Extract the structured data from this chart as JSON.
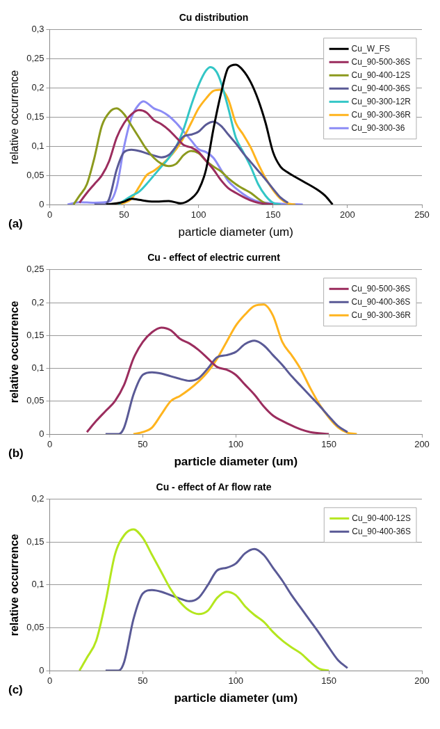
{
  "chart_data": [
    {
      "type": "line",
      "title": "Cu distribution",
      "xlabel": "particle diameter (um)",
      "ylabel": "relative occurrence",
      "annotations": [
        "(a)"
      ],
      "xlim": [
        0,
        250
      ],
      "xticks": [
        0,
        50,
        100,
        150,
        200,
        250
      ],
      "ylim": [
        0,
        0.3
      ],
      "yticks": [
        {
          "value": 0,
          "label": "0"
        },
        {
          "value": 0.05,
          "label": "0,05"
        },
        {
          "value": 0.1,
          "label": "0,1"
        },
        {
          "value": 0.15,
          "label": "0,15"
        },
        {
          "value": 0.2,
          "label": "0,2"
        },
        {
          "value": 0.25,
          "label": "0,25"
        },
        {
          "value": 0.3,
          "label": "0,3"
        }
      ],
      "grid": "y",
      "legend": "top right",
      "marker": "none",
      "line_style": "solid",
      "series": [
        {
          "name": "Cu_W_FS",
          "color": "#000000",
          "x": [
            38,
            45,
            50,
            55,
            60,
            70,
            80,
            88,
            95,
            100,
            105,
            110,
            115,
            120,
            125,
            130,
            135,
            140,
            145,
            150,
            155,
            160,
            170,
            180,
            185,
            190
          ],
          "values": [
            0,
            0.002,
            0.005,
            0.01,
            0.008,
            0.005,
            0.006,
            0.002,
            0.01,
            0.025,
            0.06,
            0.13,
            0.19,
            0.235,
            0.24,
            0.23,
            0.21,
            0.18,
            0.14,
            0.09,
            0.065,
            0.055,
            0.04,
            0.025,
            0.015,
            0
          ]
        },
        {
          "name": "Cu_90-500-36S",
          "color": "#9b2d5e",
          "x": [
            20,
            25,
            30,
            35,
            40,
            45,
            50,
            55,
            60,
            65,
            70,
            75,
            80,
            85,
            90,
            95,
            100,
            105,
            110,
            115,
            120,
            125,
            130,
            135,
            140,
            150
          ],
          "values": [
            0.003,
            0.02,
            0.035,
            0.05,
            0.075,
            0.115,
            0.14,
            0.155,
            0.162,
            0.158,
            0.145,
            0.138,
            0.128,
            0.115,
            0.102,
            0.098,
            0.09,
            0.075,
            0.06,
            0.042,
            0.028,
            0.02,
            0.013,
            0.007,
            0.003,
            0
          ]
        },
        {
          "name": "Cu_90-400-12S",
          "color": "#8c9a1e",
          "x": [
            16,
            20,
            25,
            30,
            35,
            40,
            45,
            50,
            55,
            60,
            65,
            70,
            75,
            80,
            85,
            90,
            95,
            100,
            105,
            110,
            115,
            120,
            125,
            130,
            135,
            140,
            145,
            150
          ],
          "values": [
            0,
            0.015,
            0.035,
            0.08,
            0.135,
            0.158,
            0.165,
            0.155,
            0.135,
            0.115,
            0.095,
            0.08,
            0.07,
            0.066,
            0.07,
            0.085,
            0.092,
            0.088,
            0.075,
            0.065,
            0.057,
            0.045,
            0.035,
            0.027,
            0.02,
            0.01,
            0.002,
            0
          ]
        },
        {
          "name": "Cu_90-400-36S",
          "color": "#5a5a96",
          "x": [
            30,
            37,
            40,
            45,
            50,
            55,
            60,
            65,
            70,
            75,
            80,
            85,
            90,
            95,
            100,
            105,
            110,
            115,
            120,
            125,
            130,
            135,
            140,
            145,
            150,
            155,
            160
          ],
          "values": [
            0,
            0,
            0.01,
            0.06,
            0.09,
            0.094,
            0.092,
            0.088,
            0.084,
            0.081,
            0.085,
            0.1,
            0.117,
            0.12,
            0.125,
            0.137,
            0.142,
            0.135,
            0.12,
            0.105,
            0.088,
            0.073,
            0.058,
            0.043,
            0.027,
            0.012,
            0.003
          ]
        },
        {
          "name": "Cu_90-300-12R",
          "color": "#33c6c6",
          "x": [
            46,
            50,
            55,
            60,
            65,
            70,
            75,
            80,
            85,
            90,
            95,
            100,
            105,
            108,
            112,
            115,
            120,
            125,
            130,
            135,
            140,
            145,
            150,
            155
          ],
          "values": [
            0,
            0.007,
            0.015,
            0.022,
            0.035,
            0.05,
            0.065,
            0.08,
            0.1,
            0.13,
            0.17,
            0.205,
            0.23,
            0.236,
            0.228,
            0.21,
            0.165,
            0.115,
            0.09,
            0.065,
            0.035,
            0.015,
            0.003,
            0
          ]
        },
        {
          "name": "Cu_90-300-36R",
          "color": "#ffb41e",
          "x": [
            45,
            50,
            55,
            60,
            65,
            70,
            75,
            80,
            85,
            90,
            95,
            100,
            105,
            110,
            115,
            120,
            125,
            130,
            135,
            140,
            145,
            150,
            155,
            160,
            165
          ],
          "values": [
            0,
            0.003,
            0.01,
            0.03,
            0.05,
            0.058,
            0.068,
            0.08,
            0.095,
            0.115,
            0.14,
            0.165,
            0.182,
            0.195,
            0.197,
            0.18,
            0.14,
            0.12,
            0.098,
            0.07,
            0.045,
            0.025,
            0.01,
            0.002,
            0
          ]
        },
        {
          "name": "Cu_90-300-36",
          "color": "#8c8cf5",
          "x": [
            12,
            20,
            30,
            40,
            45,
            50,
            55,
            60,
            63,
            65,
            70,
            75,
            80,
            85,
            90,
            95,
            100,
            105,
            110,
            115,
            120,
            125,
            130,
            135,
            140,
            150,
            170
          ],
          "values": [
            0,
            0.004,
            0.003,
            0.005,
            0.03,
            0.1,
            0.15,
            0.172,
            0.177,
            0.175,
            0.165,
            0.16,
            0.152,
            0.14,
            0.125,
            0.11,
            0.095,
            0.09,
            0.08,
            0.06,
            0.04,
            0.028,
            0.018,
            0.01,
            0.005,
            0.002,
            0
          ]
        }
      ]
    },
    {
      "type": "line",
      "title": "Cu - effect of electric current",
      "xlabel": "particle diameter (um)",
      "ylabel": "relative occurrence",
      "annotations": [
        "(b)"
      ],
      "xlim": [
        0,
        200
      ],
      "xticks": [
        0,
        50,
        100,
        150,
        200
      ],
      "ylim": [
        0,
        0.25
      ],
      "yticks": [
        {
          "value": 0,
          "label": "0"
        },
        {
          "value": 0.05,
          "label": "0,05"
        },
        {
          "value": 0.1,
          "label": "0,1"
        },
        {
          "value": 0.15,
          "label": "0,15"
        },
        {
          "value": 0.2,
          "label": "0,2"
        },
        {
          "value": 0.25,
          "label": "0,25"
        }
      ],
      "grid": "y",
      "legend": "top right",
      "marker": "none",
      "line_style": "solid",
      "series": [
        {
          "name": "Cu_90-500-36S",
          "color": "#9b2d5e",
          "x": [
            20,
            25,
            30,
            35,
            40,
            45,
            50,
            55,
            60,
            65,
            70,
            75,
            80,
            85,
            90,
            95,
            100,
            105,
            110,
            115,
            120,
            125,
            130,
            135,
            140,
            150
          ],
          "values": [
            0.003,
            0.02,
            0.035,
            0.05,
            0.075,
            0.115,
            0.14,
            0.155,
            0.162,
            0.158,
            0.145,
            0.138,
            0.128,
            0.115,
            0.102,
            0.098,
            0.09,
            0.075,
            0.06,
            0.042,
            0.028,
            0.02,
            0.013,
            0.007,
            0.003,
            0
          ]
        },
        {
          "name": "Cu_90-400-36S",
          "color": "#5a5a96",
          "x": [
            30,
            37,
            40,
            45,
            50,
            55,
            60,
            65,
            70,
            75,
            80,
            85,
            90,
            95,
            100,
            105,
            110,
            115,
            120,
            125,
            130,
            135,
            140,
            145,
            150,
            155,
            160
          ],
          "values": [
            0,
            0,
            0.01,
            0.06,
            0.09,
            0.094,
            0.092,
            0.088,
            0.084,
            0.081,
            0.085,
            0.1,
            0.117,
            0.12,
            0.125,
            0.137,
            0.142,
            0.135,
            0.12,
            0.105,
            0.088,
            0.073,
            0.058,
            0.043,
            0.027,
            0.012,
            0.003
          ]
        },
        {
          "name": "Cu_90-300-36R",
          "color": "#ffb41e",
          "x": [
            45,
            50,
            55,
            60,
            65,
            70,
            75,
            80,
            85,
            90,
            95,
            100,
            105,
            110,
            115,
            120,
            125,
            130,
            135,
            140,
            145,
            150,
            155,
            160,
            165
          ],
          "values": [
            0,
            0.003,
            0.01,
            0.03,
            0.05,
            0.058,
            0.068,
            0.08,
            0.095,
            0.115,
            0.14,
            0.165,
            0.182,
            0.195,
            0.197,
            0.18,
            0.14,
            0.12,
            0.098,
            0.07,
            0.045,
            0.025,
            0.01,
            0.002,
            0
          ]
        }
      ]
    },
    {
      "type": "line",
      "title": "Cu - effect of Ar flow rate",
      "xlabel": "particle diameter (um)",
      "ylabel": "relative occurrence",
      "annotations": [
        "(c)"
      ],
      "xlim": [
        0,
        200
      ],
      "xticks": [
        0,
        50,
        100,
        150,
        200
      ],
      "ylim": [
        0,
        0.2
      ],
      "yticks": [
        {
          "value": 0,
          "label": "0"
        },
        {
          "value": 0.05,
          "label": "0,05"
        },
        {
          "value": 0.1,
          "label": "0,1"
        },
        {
          "value": 0.15,
          "label": "0,15"
        },
        {
          "value": 0.2,
          "label": "0,2"
        }
      ],
      "grid": "y",
      "legend": "top right",
      "marker": "none",
      "line_style": "solid",
      "series": [
        {
          "name": "Cu_90-400-12S",
          "color": "#b4e61e",
          "x": [
            16,
            20,
            25,
            30,
            35,
            40,
            45,
            50,
            55,
            60,
            65,
            70,
            75,
            80,
            85,
            90,
            95,
            100,
            105,
            110,
            115,
            120,
            125,
            130,
            135,
            140,
            145,
            150
          ],
          "values": [
            0,
            0.015,
            0.035,
            0.08,
            0.135,
            0.158,
            0.165,
            0.155,
            0.135,
            0.115,
            0.095,
            0.08,
            0.07,
            0.066,
            0.07,
            0.085,
            0.092,
            0.088,
            0.075,
            0.065,
            0.057,
            0.045,
            0.035,
            0.027,
            0.02,
            0.01,
            0.002,
            0
          ]
        },
        {
          "name": "Cu_90-400-36S",
          "color": "#5a5a96",
          "x": [
            30,
            37,
            40,
            45,
            50,
            55,
            60,
            65,
            70,
            75,
            80,
            85,
            90,
            95,
            100,
            105,
            110,
            115,
            120,
            125,
            130,
            135,
            140,
            145,
            150,
            155,
            160
          ],
          "values": [
            0,
            0,
            0.01,
            0.06,
            0.09,
            0.094,
            0.092,
            0.088,
            0.084,
            0.081,
            0.085,
            0.1,
            0.117,
            0.12,
            0.125,
            0.137,
            0.142,
            0.135,
            0.12,
            0.105,
            0.088,
            0.073,
            0.058,
            0.043,
            0.027,
            0.012,
            0.003
          ]
        }
      ]
    }
  ]
}
